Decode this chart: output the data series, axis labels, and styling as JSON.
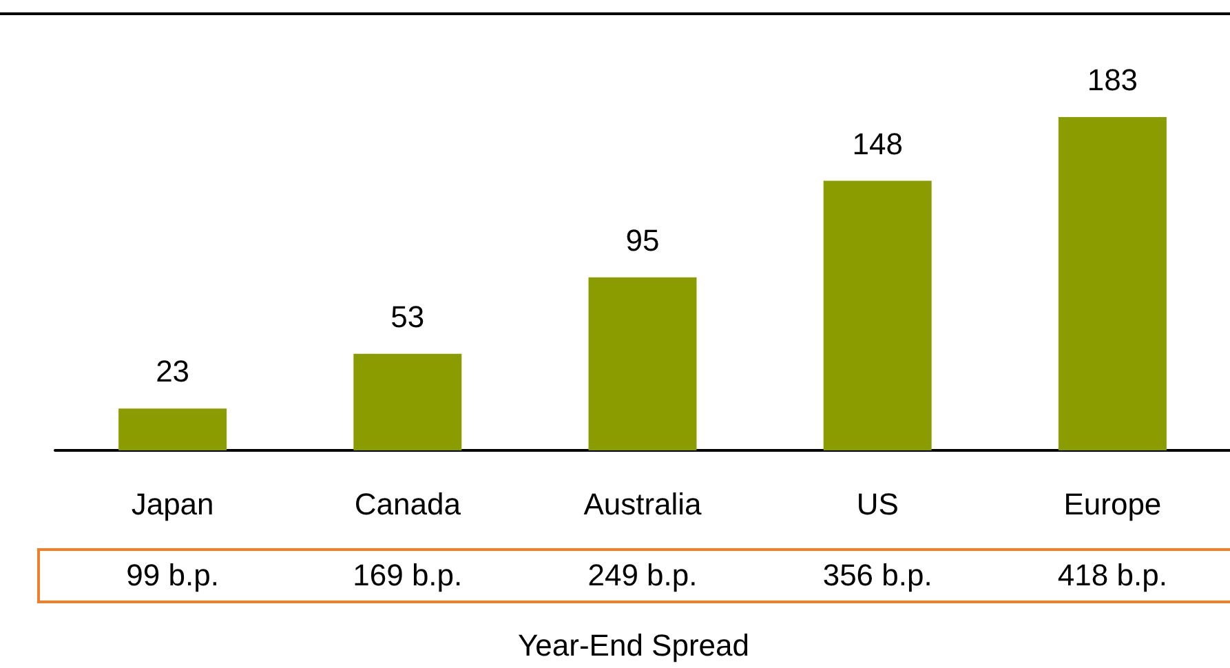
{
  "chart_data": {
    "type": "bar",
    "categories": [
      "Japan",
      "Canada",
      "Australia",
      "US",
      "Europe"
    ],
    "values": [
      23,
      53,
      95,
      148,
      183
    ],
    "color": "#8a9c00",
    "data_labels": true,
    "xlabel": "Year-End Spread",
    "annotations": [
      "99 b.p.",
      "169 b.p.",
      "249 b.p.",
      "356 b.p.",
      "418 b.p."
    ]
  }
}
